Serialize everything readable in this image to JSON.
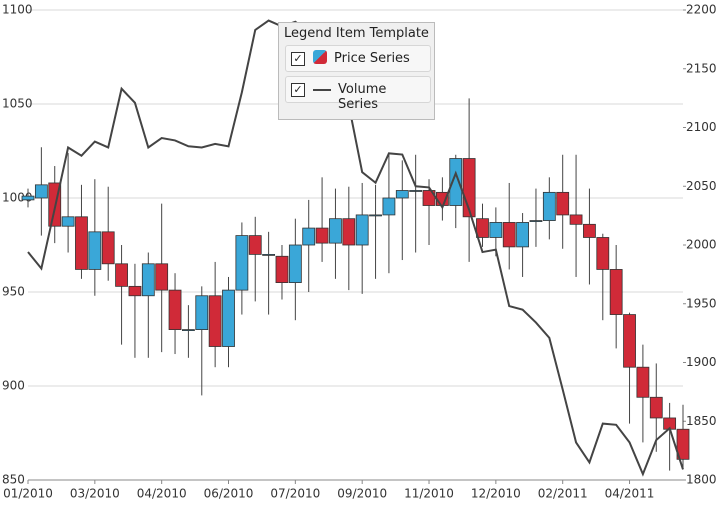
{
  "chart_data": {
    "type": "candlestick",
    "legend_title": "Legend Item Template",
    "categories": [
      "01/2010",
      null,
      null,
      null,
      null,
      "03/2010",
      null,
      null,
      null,
      null,
      "04/2010",
      null,
      null,
      null,
      null,
      "06/2010",
      null,
      null,
      null,
      null,
      "07/2010",
      null,
      null,
      null,
      null,
      "09/2010",
      null,
      null,
      null,
      null,
      "11/2010",
      null,
      null,
      null,
      null,
      "12/2010",
      null,
      null,
      null,
      null,
      "02/2011",
      null,
      null,
      null,
      null,
      "04/2011",
      null,
      null,
      null,
      null
    ],
    "series": [
      {
        "name": "Price Series",
        "type": "candlestick",
        "up_color": "#3aa7d8",
        "down_color": "#d02a38",
        "open": [
          999,
          1000,
          1008,
          985,
          990,
          962,
          982,
          965,
          953,
          948,
          965,
          951,
          930,
          930,
          948,
          921,
          951,
          980,
          970,
          969,
          955,
          975,
          984,
          976,
          989,
          975,
          991,
          991,
          1000,
          1004,
          1004,
          1003,
          996,
          1021,
          989,
          979,
          987,
          974,
          988,
          988,
          1003,
          991,
          986,
          979,
          962,
          938,
          910,
          894,
          883,
          877
        ],
        "close": [
          1001,
          1007,
          985,
          990,
          962,
          982,
          965,
          953,
          948,
          965,
          951,
          930,
          930,
          948,
          921,
          951,
          980,
          970,
          970,
          955,
          975,
          984,
          976,
          989,
          975,
          991,
          991,
          1000,
          1004,
          1004,
          996,
          996,
          1021,
          990,
          979,
          987,
          974,
          987,
          988,
          1003,
          991,
          986,
          979,
          962,
          938,
          910,
          894,
          883,
          877,
          861
        ],
        "high": [
          1005,
          1027,
          1017,
          1024,
          1007,
          1010,
          1006,
          975,
          965,
          971,
          997,
          960,
          943,
          953,
          966,
          958,
          987,
          990,
          982,
          975,
          989,
          999,
          1011,
          1005,
          1006,
          1008,
          1007,
          1023,
          1020,
          1023,
          1010,
          1011,
          1023,
          1053,
          997,
          995,
          1008,
          992,
          1005,
          1011,
          1023,
          1023,
          1005,
          981,
          975,
          939,
          922,
          912,
          891,
          890
        ],
        "low": [
          995,
          980,
          976,
          971,
          957,
          948,
          956,
          922,
          915,
          915,
          918,
          917,
          915,
          895,
          910,
          910,
          938,
          945,
          938,
          946,
          935,
          950,
          966,
          957,
          951,
          949,
          957,
          960,
          967,
          971,
          975,
          988,
          984,
          966,
          974,
          969,
          962,
          958,
          974,
          978,
          973,
          958,
          954,
          935,
          920,
          880,
          870,
          865,
          855,
          856
        ]
      },
      {
        "name": "Volume Series",
        "type": "line",
        "axis": "y2",
        "color": "#444444",
        "values": [
          1994,
          1980,
          2031,
          2083,
          2076,
          2088,
          2083,
          2133,
          2121,
          2083,
          2091,
          2089,
          2084,
          2083,
          2086,
          2084,
          2130,
          2183,
          2191,
          2186,
          2190,
          2181,
          2176,
          2159,
          2119,
          2062,
          2053,
          2078,
          2077,
          2050,
          2049,
          2032,
          2061,
          2030,
          1994,
          1996,
          1948,
          1945,
          1934,
          1921,
          1877,
          1832,
          1815,
          1848,
          1847,
          1832,
          1805,
          1834,
          1844,
          1809
        ]
      }
    ],
    "ylim": [
      850,
      1100
    ],
    "yticks": [
      850,
      900,
      950,
      1000,
      1050,
      1100
    ],
    "y2lim": [
      1800,
      2200
    ],
    "y2ticks": [
      1800,
      1850,
      1900,
      1950,
      2000,
      2050,
      2100,
      2150,
      2200
    ],
    "grid": true
  }
}
